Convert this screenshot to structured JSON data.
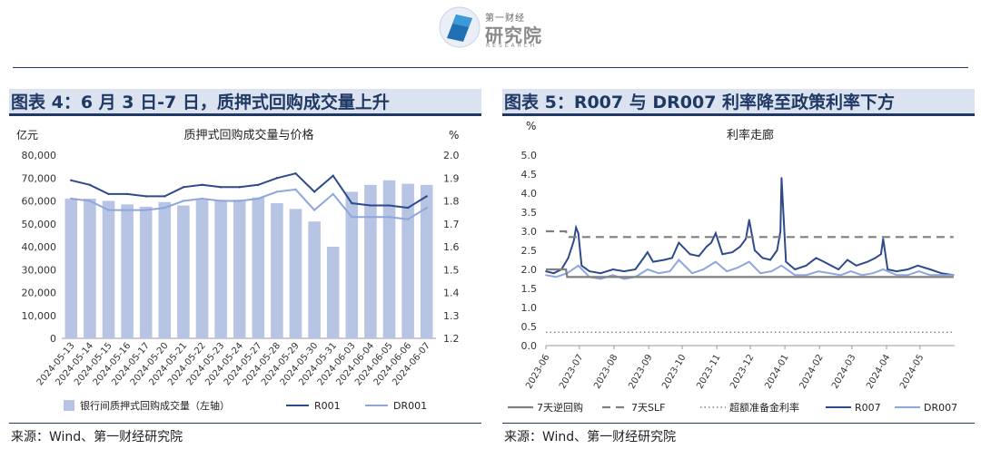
{
  "logo": {
    "top": "第一财经",
    "main": "研究院",
    "sub": "RESEARCH"
  },
  "panels": [
    {
      "title": "图表 4：6 月 3 日-7 日，质押式回购成交量上升",
      "source": "来源：Wind、第一财经研究院"
    },
    {
      "title": "图表 5：R007 与 DR007 利率降至政策利率下方",
      "source": "来源：Wind、第一财经研究院"
    }
  ],
  "colors": {
    "bar": "#b7c4e4",
    "dark_line": "#2e4a8b",
    "light_line": "#8ea6db",
    "grey_line": "#7f7f7f",
    "dashed_line": "#7f7f7f",
    "dotted_line": "#7f7f7f",
    "title_navy": "#203864",
    "title_band": "#dbe3f1"
  },
  "chart_data": [
    {
      "type": "bar",
      "title": "质押式回购成交量与价格",
      "ylabel": "亿元",
      "y2label": "%",
      "ylim": [
        0,
        80000
      ],
      "y2lim": [
        1.2,
        2.0
      ],
      "yticks": [
        "0",
        "10,000",
        "20,000",
        "30,000",
        "40,000",
        "50,000",
        "60,000",
        "70,000",
        "80,000"
      ],
      "y2ticks": [
        "1.2",
        "1.3",
        "1.4",
        "1.5",
        "1.6",
        "1.7",
        "1.8",
        "1.9",
        "2.0"
      ],
      "categories": [
        "2024-05-13",
        "2024-05-14",
        "2024-05-15",
        "2024-05-16",
        "2024-05-17",
        "2024-05-20",
        "2024-05-21",
        "2024-05-22",
        "2024-05-23",
        "2024-05-24",
        "2024-05-27",
        "2024-05-28",
        "2024-05-29",
        "2024-05-30",
        "2024-05-31",
        "2024-06-03",
        "2024-06-04",
        "2024-06-05",
        "2024-06-06",
        "2024-06-07"
      ],
      "series": [
        {
          "name": "银行间质押式回购成交量（左轴）",
          "axis": "left",
          "kind": "bar",
          "values": [
            61000,
            61000,
            60000,
            58500,
            57500,
            59500,
            58000,
            60500,
            60500,
            60500,
            61500,
            59000,
            56500,
            51000,
            40000,
            64000,
            67000,
            69000,
            67500,
            67000
          ]
        },
        {
          "name": "R001",
          "axis": "right",
          "kind": "line",
          "values": [
            1.89,
            1.87,
            1.83,
            1.83,
            1.82,
            1.82,
            1.86,
            1.87,
            1.86,
            1.86,
            1.87,
            1.9,
            1.92,
            1.84,
            1.91,
            1.79,
            1.78,
            1.78,
            1.77,
            1.82
          ]
        },
        {
          "name": "DR001",
          "axis": "right",
          "kind": "line",
          "values": [
            1.81,
            1.8,
            1.76,
            1.76,
            1.76,
            1.77,
            1.8,
            1.81,
            1.8,
            1.8,
            1.81,
            1.84,
            1.85,
            1.76,
            1.83,
            1.73,
            1.73,
            1.73,
            1.72,
            1.77
          ]
        }
      ],
      "legend": "bottom"
    },
    {
      "type": "line",
      "title": "利率走廊",
      "ylabel": "%",
      "ylim": [
        0,
        5
      ],
      "yticks": [
        "0.0",
        "0.5",
        "1.0",
        "1.5",
        "2.0",
        "2.5",
        "3.0",
        "3.5",
        "4.0",
        "4.5",
        "5.0"
      ],
      "xlim": [
        "2023-06",
        "2024-06"
      ],
      "xticks": [
        "2023-06",
        "2023-07",
        "2023-08",
        "2023-09",
        "2023-10",
        "2023-11",
        "2023-12",
        "2024-01",
        "2024-02",
        "2024-03",
        "2024-04",
        "2024-05"
      ],
      "series": [
        {
          "name": "7天逆回购",
          "style": "solid-grey",
          "x": [
            "2023-06-01",
            "2023-06-19",
            "2023-06-20",
            "2024-05-31"
          ],
          "y": [
            2.0,
            2.0,
            1.8,
            1.8
          ]
        },
        {
          "name": "7天SLF",
          "style": "dashed",
          "x": [
            "2023-06-01",
            "2023-06-19",
            "2023-06-20",
            "2024-05-31"
          ],
          "y": [
            3.0,
            3.0,
            2.85,
            2.85
          ]
        },
        {
          "name": "超额准备金利率",
          "style": "dotted",
          "x": [
            "2023-06-01",
            "2024-05-31"
          ],
          "y": [
            0.35,
            0.35
          ]
        },
        {
          "name": "R007",
          "style": "dark",
          "x": [
            "2023-06-01",
            "2023-06-08",
            "2023-06-15",
            "2023-06-21",
            "2023-06-26",
            "2023-06-28",
            "2023-06-30",
            "2023-07-03",
            "2023-07-10",
            "2023-07-20",
            "2023-07-31",
            "2023-08-10",
            "2023-08-20",
            "2023-08-25",
            "2023-08-31",
            "2023-09-05",
            "2023-09-15",
            "2023-09-22",
            "2023-09-28",
            "2023-10-08",
            "2023-10-16",
            "2023-10-23",
            "2023-10-27",
            "2023-10-31",
            "2023-11-06",
            "2023-11-15",
            "2023-11-22",
            "2023-11-27",
            "2023-11-30",
            "2023-12-05",
            "2023-12-12",
            "2023-12-19",
            "2023-12-25",
            "2023-12-28",
            "2023-12-29",
            "2024-01-02",
            "2024-01-10",
            "2024-01-20",
            "2024-01-29",
            "2024-02-05",
            "2024-02-18",
            "2024-02-26",
            "2024-03-05",
            "2024-03-15",
            "2024-03-22",
            "2024-03-27",
            "2024-03-29",
            "2024-04-02",
            "2024-04-10",
            "2024-04-20",
            "2024-04-29",
            "2024-05-10",
            "2024-05-20",
            "2024-05-31"
          ],
          "y": [
            1.95,
            1.9,
            2.0,
            2.3,
            2.75,
            3.1,
            2.95,
            2.1,
            1.95,
            1.9,
            2.0,
            1.95,
            2.0,
            2.2,
            2.45,
            2.2,
            2.25,
            2.3,
            2.7,
            2.4,
            2.35,
            2.6,
            2.7,
            2.95,
            2.4,
            2.45,
            2.6,
            2.8,
            3.3,
            2.5,
            2.3,
            2.25,
            2.5,
            3.0,
            4.4,
            2.2,
            2.0,
            2.1,
            2.3,
            2.2,
            2.0,
            2.25,
            2.1,
            2.2,
            2.3,
            2.4,
            2.8,
            2.0,
            1.95,
            2.0,
            2.1,
            2.0,
            1.9,
            1.85
          ]
        },
        {
          "name": "DR007",
          "style": "light",
          "x": [
            "2023-06-01",
            "2023-06-10",
            "2023-06-20",
            "2023-06-30",
            "2023-07-10",
            "2023-07-20",
            "2023-07-31",
            "2023-08-10",
            "2023-08-20",
            "2023-08-31",
            "2023-09-10",
            "2023-09-20",
            "2023-09-28",
            "2023-10-10",
            "2023-10-20",
            "2023-10-31",
            "2023-11-10",
            "2023-11-20",
            "2023-11-30",
            "2023-12-10",
            "2023-12-20",
            "2023-12-29",
            "2024-01-10",
            "2024-01-20",
            "2024-01-31",
            "2024-02-10",
            "2024-02-20",
            "2024-02-29",
            "2024-03-10",
            "2024-03-20",
            "2024-03-29",
            "2024-04-10",
            "2024-04-20",
            "2024-04-30",
            "2024-05-10",
            "2024-05-20",
            "2024-05-31"
          ],
          "y": [
            1.85,
            1.8,
            1.9,
            2.1,
            1.8,
            1.75,
            1.85,
            1.75,
            1.8,
            2.0,
            1.9,
            1.95,
            2.25,
            1.9,
            2.0,
            2.2,
            1.95,
            2.05,
            2.2,
            1.9,
            1.95,
            2.1,
            1.85,
            1.85,
            1.95,
            1.9,
            1.85,
            1.95,
            1.85,
            1.9,
            2.0,
            1.85,
            1.85,
            1.95,
            1.85,
            1.85,
            1.85
          ]
        }
      ],
      "legend": "bottom"
    }
  ]
}
